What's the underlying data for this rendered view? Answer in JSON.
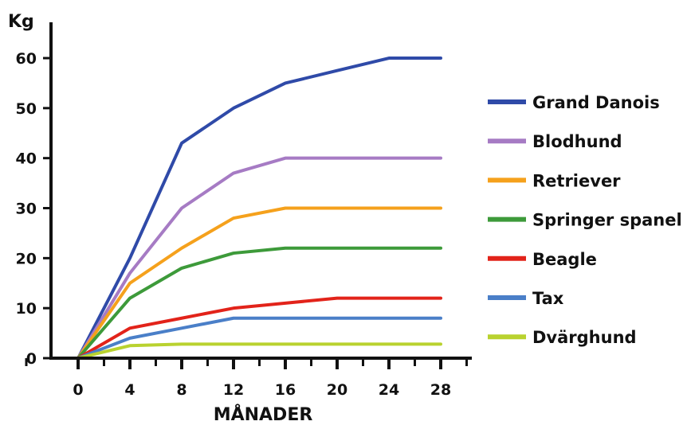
{
  "chart_data": {
    "type": "line",
    "title": "",
    "ylabel": "Kg",
    "xlabel": "MÅNADER",
    "x": [
      0,
      4,
      8,
      12,
      16,
      20,
      24,
      28
    ],
    "x_ticks": [
      "0",
      "4",
      "8",
      "12",
      "16",
      "20",
      "24",
      "28"
    ],
    "y_ticks": [
      "0",
      "10",
      "20",
      "30",
      "40",
      "50",
      "60"
    ],
    "xlim": [
      -4,
      30
    ],
    "ylim": [
      0,
      65
    ],
    "grid": false,
    "legend_position": "right",
    "series": [
      {
        "name": "Grand Danois",
        "color": "#2f4aa8",
        "x": [
          0,
          4,
          8,
          12,
          16,
          20,
          24,
          28
        ],
        "values": [
          0,
          20,
          43,
          50,
          55,
          57.5,
          60,
          60
        ]
      },
      {
        "name": "Blodhund",
        "color": "#a67bc4",
        "x": [
          0,
          4,
          8,
          12,
          16,
          20,
          24,
          28
        ],
        "values": [
          0,
          17,
          30,
          37,
          40,
          40,
          40,
          40
        ]
      },
      {
        "name": "Retriever",
        "color": "#f5a11c",
        "x": [
          0,
          4,
          8,
          12,
          16,
          20,
          24,
          28
        ],
        "values": [
          0,
          15,
          22,
          28,
          30,
          30,
          30,
          30
        ]
      },
      {
        "name": "Springer spanel",
        "color": "#3d9a3a",
        "x": [
          0,
          4,
          8,
          12,
          16,
          20,
          24,
          28
        ],
        "values": [
          0,
          12,
          18,
          21,
          22,
          22,
          22,
          22
        ]
      },
      {
        "name": "Beagle",
        "color": "#e2231a",
        "x": [
          0,
          4,
          8,
          12,
          16,
          20,
          24,
          28
        ],
        "values": [
          0,
          6,
          8,
          10,
          11,
          12,
          12,
          12
        ]
      },
      {
        "name": "Tax",
        "color": "#4a7fc8",
        "x": [
          0,
          4,
          8,
          12,
          16,
          20,
          24,
          28
        ],
        "values": [
          0,
          4,
          6,
          8,
          8,
          8,
          8,
          8
        ]
      },
      {
        "name": "Dvärghund",
        "color": "#b9d22f",
        "x": [
          0,
          4,
          8,
          12,
          16,
          20,
          24,
          28
        ],
        "values": [
          0,
          2.5,
          2.8,
          2.8,
          2.8,
          2.8,
          2.8,
          2.8
        ]
      }
    ]
  }
}
